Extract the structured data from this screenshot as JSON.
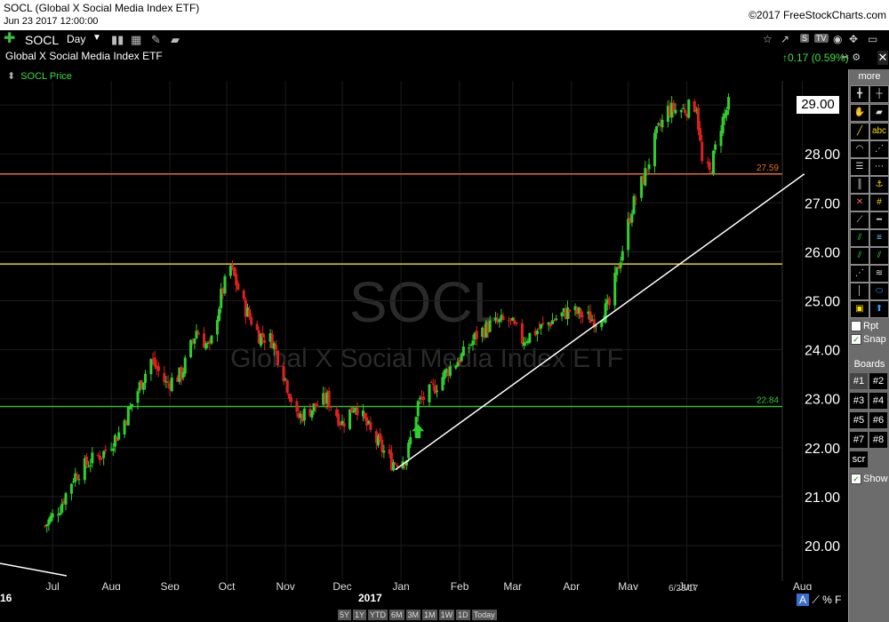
{
  "window": {
    "title": "SOCL (Global X Social Media Index ETF)",
    "datetime": "Jun 23 2017 12:00:00",
    "copyright": "©2017 FreeStockCharts.com"
  },
  "toolbar": {
    "symbol": "SOCL",
    "period": "Day",
    "icons": [
      "add-symbol-icon",
      "period-dropdown-icon",
      "bar-style-icon",
      "calculator-icon",
      "draw-pencil-icon",
      "folder-icon",
      "star-icon",
      "share-icon",
      "s-tag",
      "tv-tag",
      "eye-icon",
      "move-icon",
      "window-icon"
    ],
    "tag_s": "S",
    "tag_tv": "TV"
  },
  "header": {
    "name": "Global X Social Media Index ETF",
    "change": "0.17 (0.59%)",
    "series_label": "SOCL Price"
  },
  "watermark": {
    "symbol": "SOCL",
    "name": "Global X Social Media Index ETF"
  },
  "price_box": "29.00",
  "hlines": [
    {
      "value": 27.59,
      "label": "27.59",
      "color": "#e07020"
    },
    {
      "value": 25.75,
      "label": "",
      "color": "#e0d020"
    },
    {
      "value": 22.84,
      "label": "22.84",
      "color": "#2fbf2f"
    }
  ],
  "chart_data": {
    "type": "candlestick",
    "ylim": [
      19.5,
      29.9
    ],
    "y_ticks": [
      "20.00",
      "21.00",
      "22.00",
      "23.00",
      "24.00",
      "25.00",
      "26.00",
      "27.00",
      "28.00",
      "29.00"
    ],
    "x_ticks": [
      "Jul",
      "Aug",
      "Sep",
      "Oct",
      "Nov",
      "Dec",
      "Jan",
      "Feb",
      "Mar",
      "Apr",
      "May",
      "Jun",
      "Aug"
    ],
    "year_labels": [
      "16",
      "2017"
    ],
    "date_stamp": "6/23/17",
    "series": [
      {
        "name": "SOCL Price",
        "path": [
          [
            20.4,
            "2016-06-27"
          ],
          [
            20.8,
            "2016-07-05"
          ],
          [
            21.4,
            "2016-07-12"
          ],
          [
            21.7,
            "2016-07-20"
          ],
          [
            21.9,
            "2016-07-28"
          ],
          [
            22.3,
            "2016-08-05"
          ],
          [
            22.9,
            "2016-08-12"
          ],
          [
            23.8,
            "2016-08-22"
          ],
          [
            23.3,
            "2016-08-30"
          ],
          [
            23.5,
            "2016-09-07"
          ],
          [
            24.4,
            "2016-09-15"
          ],
          [
            24.0,
            "2016-09-22"
          ],
          [
            25.1,
            "2016-09-28"
          ],
          [
            25.7,
            "2016-10-03"
          ],
          [
            24.9,
            "2016-10-10"
          ],
          [
            24.3,
            "2016-10-18"
          ],
          [
            24.2,
            "2016-10-25"
          ],
          [
            23.4,
            "2016-11-01"
          ],
          [
            22.6,
            "2016-11-07"
          ],
          [
            22.8,
            "2016-11-15"
          ],
          [
            23.0,
            "2016-11-23"
          ],
          [
            22.5,
            "2016-12-01"
          ],
          [
            22.9,
            "2016-12-08"
          ],
          [
            22.3,
            "2016-12-16"
          ],
          [
            21.7,
            "2016-12-27"
          ],
          [
            21.8,
            "2017-01-04"
          ],
          [
            22.9,
            "2017-01-10"
          ],
          [
            23.2,
            "2017-01-18"
          ],
          [
            23.6,
            "2017-01-26"
          ],
          [
            23.9,
            "2017-02-03"
          ],
          [
            24.3,
            "2017-02-10"
          ],
          [
            24.5,
            "2017-02-17"
          ],
          [
            24.6,
            "2017-02-27"
          ],
          [
            24.2,
            "2017-03-06"
          ],
          [
            24.4,
            "2017-03-14"
          ],
          [
            24.6,
            "2017-03-22"
          ],
          [
            24.8,
            "2017-03-31"
          ],
          [
            24.7,
            "2017-04-07"
          ],
          [
            24.6,
            "2017-04-14"
          ],
          [
            24.9,
            "2017-04-21"
          ],
          [
            25.9,
            "2017-04-27"
          ],
          [
            26.9,
            "2017-05-03"
          ],
          [
            27.6,
            "2017-05-10"
          ],
          [
            28.4,
            "2017-05-16"
          ],
          [
            28.9,
            "2017-05-22"
          ],
          [
            28.9,
            "2017-05-30"
          ],
          [
            29.0,
            "2017-06-06"
          ],
          [
            27.8,
            "2017-06-09"
          ],
          [
            27.6,
            "2017-06-13"
          ],
          [
            28.6,
            "2017-06-19"
          ],
          [
            29.0,
            "2017-06-23"
          ]
        ]
      }
    ],
    "trendline": {
      "from": [
        "2016-12-29",
        21.55
      ],
      "to": [
        "2017-08-02",
        27.59
      ]
    },
    "annotation": "up-arrow at 2017-01-10"
  },
  "panel": {
    "more": "more",
    "rpt": "Rpt",
    "snap": "Snap",
    "boards_title": "Boards",
    "boards": [
      "#1",
      "#2",
      "#3",
      "#4",
      "#5",
      "#6",
      "#7",
      "#8"
    ],
    "scr": "scr",
    "show": "Show"
  },
  "bottom": {
    "range_buttons": [
      "5Y",
      "1Y",
      "YTD",
      "6M",
      "3M",
      "1M",
      "1W",
      "1D",
      "Today"
    ],
    "af_a": "A",
    "af_pct": "%",
    "af_f": "F"
  }
}
